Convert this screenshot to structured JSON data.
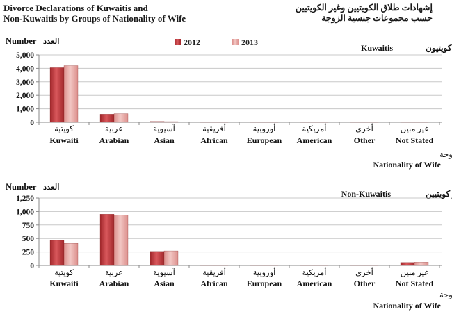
{
  "title": {
    "en_line1": "Divorce Declarations of Kuwaitis and",
    "en_line2": "Non-Kuwaitis by Groups of Nationality of Wife",
    "ar_line1": "إشهادات طلاق الكويتيين وغير الكويتيين",
    "ar_line2": "حسب مجموعات جنسية الزوجة"
  },
  "colors": {
    "s2012": "#a1262a",
    "s2012_light": "#d9585c",
    "s2013": "#dc8f8c",
    "s2013_light": "#f2c7c4",
    "grid": "#c8c8c8",
    "axis": "#8a8a8a"
  },
  "legend": [
    "2012",
    "2013"
  ],
  "chart_data": [
    {
      "type": "bar",
      "panel_label_en": "Kuwaitis",
      "panel_label_ar": "كويتيون",
      "ylabel_en": "Number",
      "ylabel_ar": "العدد",
      "xlabel_ar": "جنسية الزوجة",
      "xlabel_en": "Nationality of Wife",
      "categories_ar": [
        "كويتية",
        "عربية",
        "آسيوية",
        "أفريقية",
        "أوروبية",
        "أمريكية",
        "أخرى",
        "غير مبين"
      ],
      "categories": [
        "Kuwaiti",
        "Arabian",
        "Asian",
        "African",
        "European",
        "American",
        "Other",
        "Not Stated"
      ],
      "yticks": [
        "0",
        "1,000",
        "2,000",
        "3,000",
        "4,000",
        "5,000"
      ],
      "ylim": [
        0,
        5000
      ],
      "grid": true,
      "legend_position": "top-center",
      "series": [
        {
          "name": "2012",
          "values": [
            4050,
            600,
            60,
            5,
            5,
            2,
            2,
            20
          ]
        },
        {
          "name": "2013",
          "values": [
            4200,
            640,
            50,
            4,
            5,
            2,
            3,
            25
          ]
        }
      ]
    },
    {
      "type": "bar",
      "panel_label_en": "Non-Kuwaitis",
      "panel_label_ar": "غير كويتيين",
      "ylabel_en": "Number",
      "ylabel_ar": "العدد",
      "xlabel_ar": "جنسية الزوجة",
      "xlabel_en": "Nationality of Wife",
      "categories_ar": [
        "كويتية",
        "عربية",
        "آسيوية",
        "أفريقية",
        "أوروبية",
        "أمريكية",
        "أخرى",
        "غير مبين"
      ],
      "categories": [
        "Kuwaiti",
        "Arabian",
        "Asian",
        "African",
        "European",
        "American",
        "Other",
        "Not Stated"
      ],
      "yticks": [
        "0",
        "250",
        "500",
        "750",
        "1,000",
        "1,250"
      ],
      "ylim": [
        0,
        1250
      ],
      "grid": true,
      "series": [
        {
          "name": "2012",
          "values": [
            465,
            950,
            260,
            8,
            6,
            2,
            6,
            55
          ]
        },
        {
          "name": "2013",
          "values": [
            410,
            930,
            270,
            6,
            8,
            2,
            8,
            60
          ]
        }
      ]
    }
  ]
}
